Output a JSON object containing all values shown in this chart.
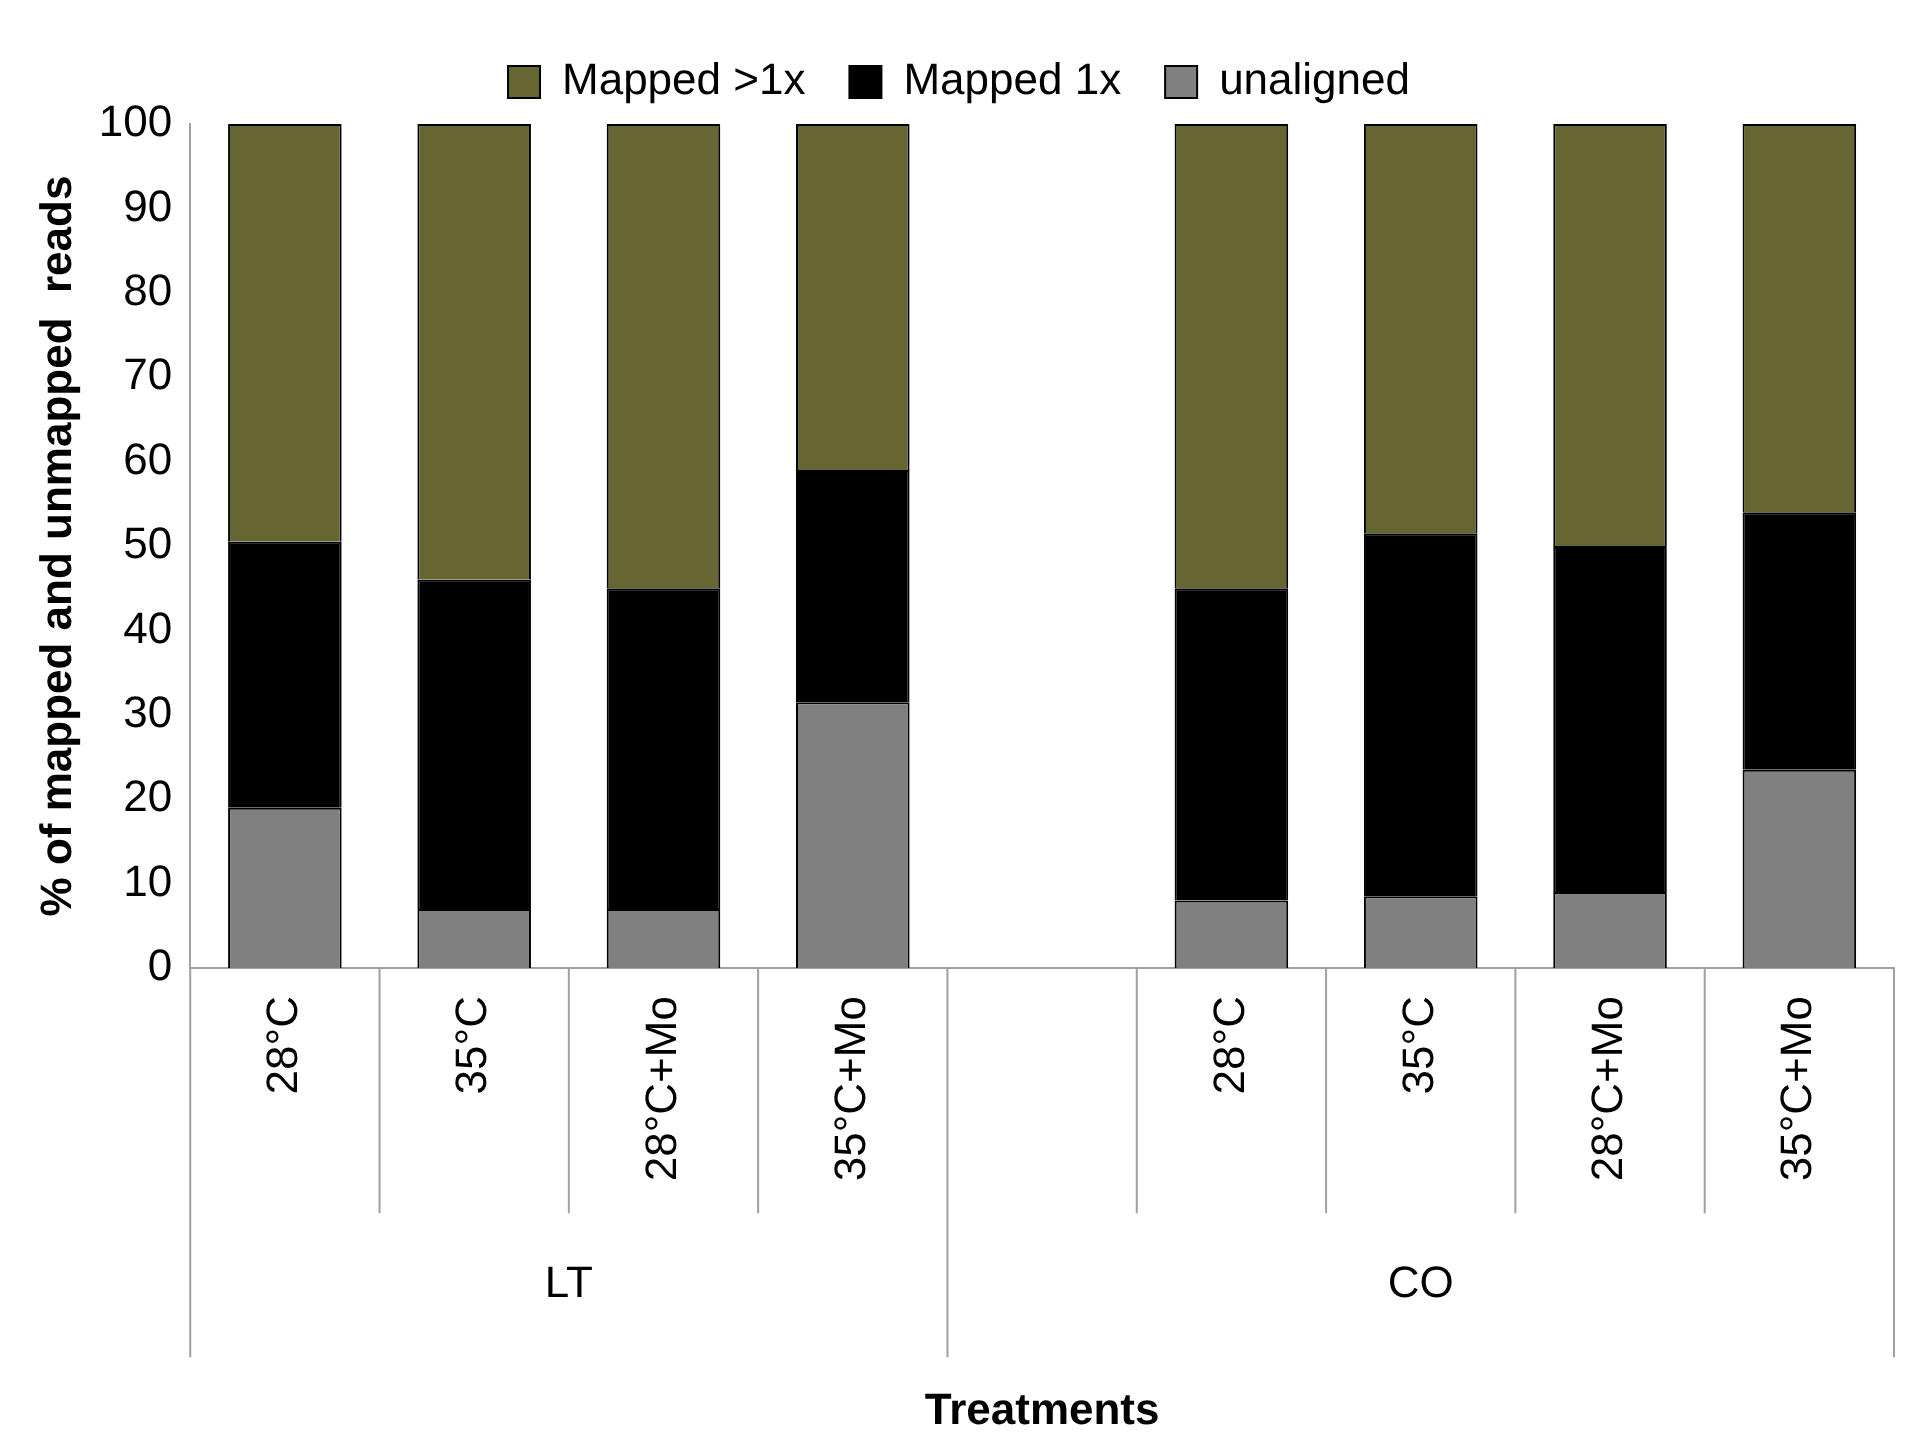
{
  "chart_data": {
    "type": "bar",
    "stacked": true,
    "xlabel": "Treatments",
    "ylabel": "% of mapped and unmapped  reads",
    "categories": [
      "28°C",
      "35°C",
      "28°C+Mo",
      "35°C+Mo",
      null,
      "28°C",
      "35°C",
      "28°C+Mo",
      "35°C+Mo"
    ],
    "annotations": [
      "LT",
      "CO"
    ],
    "series": [
      {
        "name": "unaligned",
        "color": "#808080",
        "values": [
          19,
          7,
          7,
          31.5,
          null,
          8,
          8.5,
          9,
          23.5
        ]
      },
      {
        "name": "Mapped 1x",
        "color": "#000000",
        "values": [
          31.5,
          39,
          38,
          27.5,
          null,
          37,
          43,
          41,
          30.5
        ]
      },
      {
        "name": "Mapped >1x",
        "color": "#666633",
        "values": [
          49.5,
          54,
          55,
          41,
          null,
          55,
          48.5,
          50,
          46
        ]
      }
    ],
    "ylim": [
      0,
      100
    ],
    "yticks": [
      0,
      10,
      20,
      30,
      40,
      50,
      60,
      70,
      80,
      90,
      100
    ],
    "grid": false,
    "legend": "top"
  }
}
